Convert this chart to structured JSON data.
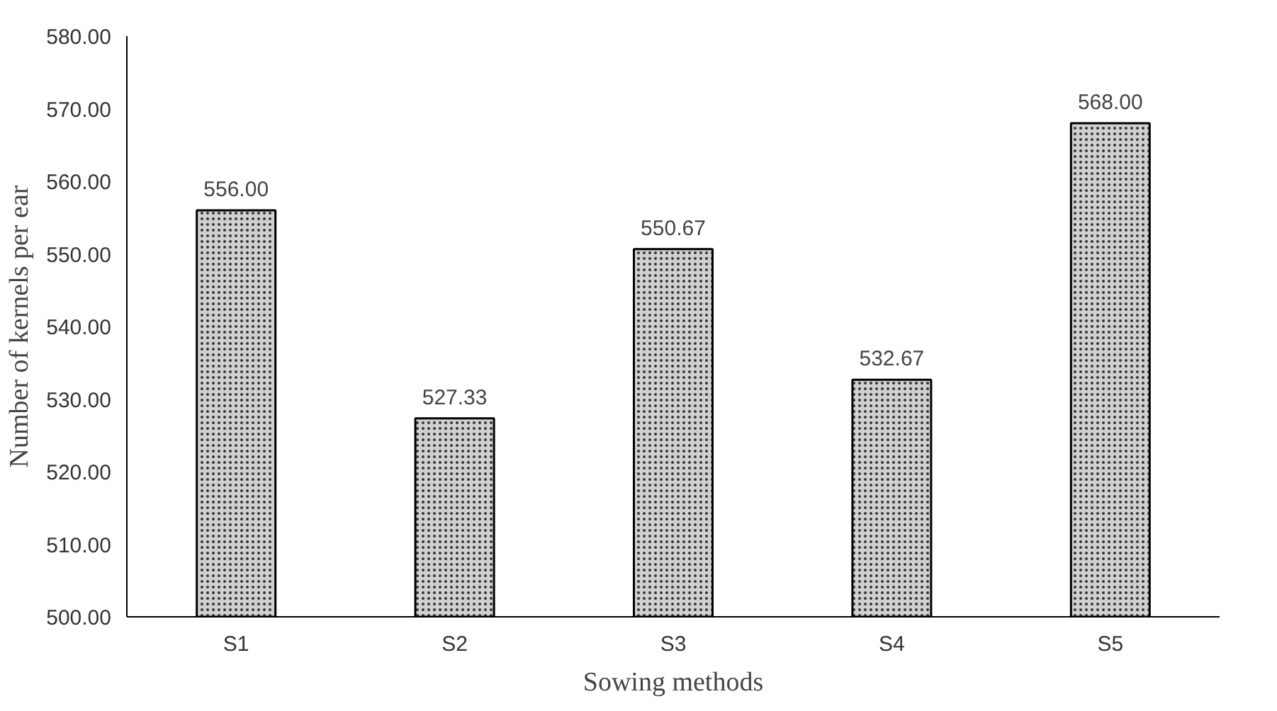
{
  "chart_data": {
    "type": "bar",
    "xlabel": "Sowing methods",
    "ylabel": "Number of kernels per ear",
    "categories": [
      "S1",
      "S2",
      "S3",
      "S4",
      "S5"
    ],
    "values": [
      556.0,
      527.33,
      550.67,
      532.67,
      568.0
    ],
    "value_labels": [
      "556.00",
      "527.33",
      "550.67",
      "532.67",
      "568.00"
    ],
    "color": "#d0d0d0",
    "ylim": [
      500,
      580
    ],
    "yticks": [
      {
        "value": 500,
        "label": "500.00"
      },
      {
        "value": 510,
        "label": "510.00"
      },
      {
        "value": 520,
        "label": "520.00"
      },
      {
        "value": 530,
        "label": "530.00"
      },
      {
        "value": 540,
        "label": "540.00"
      },
      {
        "value": 550,
        "label": "550.00"
      },
      {
        "value": 560,
        "label": "560.00"
      },
      {
        "value": 570,
        "label": "570.00"
      },
      {
        "value": 580,
        "label": "580.00"
      }
    ],
    "grid": false
  }
}
